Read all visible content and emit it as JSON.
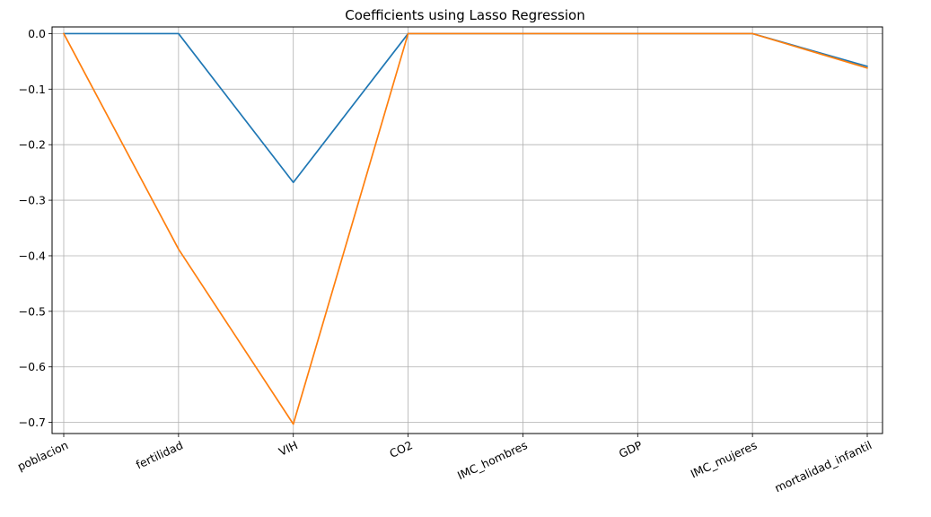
{
  "chart_data": {
    "type": "line",
    "title": "Coefficients using Lasso Regression",
    "xlabel": "",
    "ylabel": "",
    "categories": [
      "poblacion",
      "fertilidad",
      "VIH",
      "CO2",
      "IMC_hombres",
      "GDP",
      "IMC_mujeres",
      "mortalidad_infantil"
    ],
    "ylim": [
      -0.72,
      0.012
    ],
    "yticks": [
      0.0,
      -0.1,
      -0.2,
      -0.3,
      -0.4,
      -0.5,
      -0.6,
      -0.7
    ],
    "ytick_labels": [
      "0.0",
      "−0.1",
      "−0.2",
      "−0.3",
      "−0.4",
      "−0.5",
      "−0.6",
      "−0.7"
    ],
    "grid": true,
    "series": [
      {
        "color": "#1f77b4",
        "values": [
          0.0,
          0.0,
          -0.268,
          0.0,
          0.0,
          0.0,
          0.0,
          -0.059
        ]
      },
      {
        "color": "#ff7f0e",
        "values": [
          0.0,
          -0.388,
          -0.703,
          0.0,
          0.0,
          0.0,
          0.0,
          -0.062
        ]
      }
    ]
  }
}
